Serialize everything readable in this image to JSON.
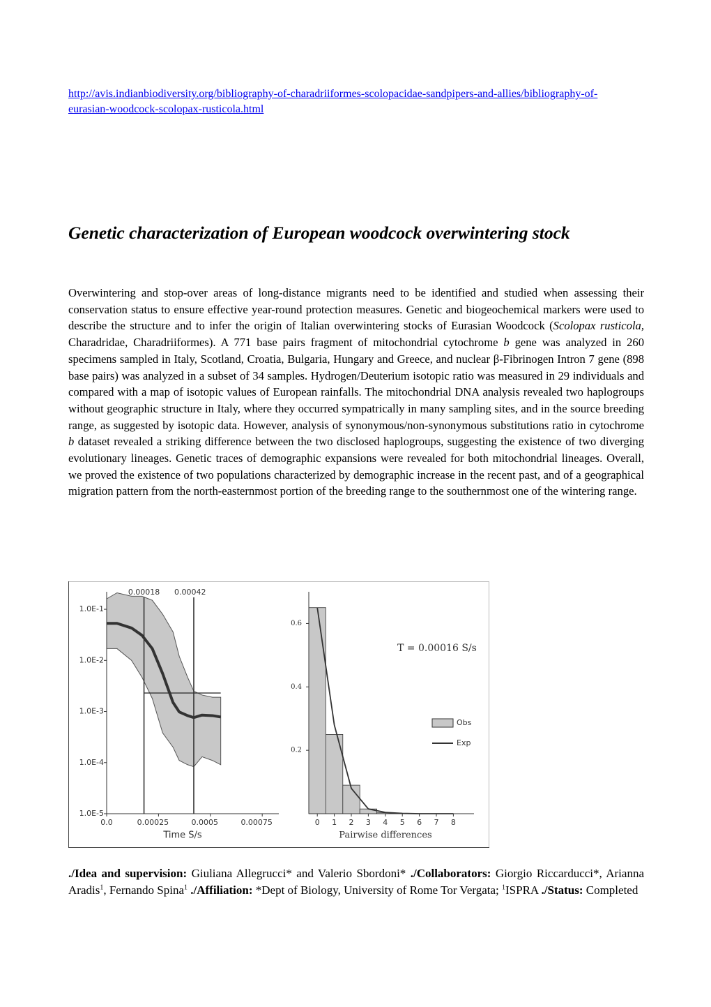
{
  "link": "http://avis.indianbiodiversity.org/bibliography-of-charadriiformes-scolopacidae-sandpipers-and-allies/bibliography-of-eurasian-woodcock-scolopax-rusticola.html",
  "title": "Genetic characterization of European woodcock overwintering stock",
  "abstract": {
    "runs": [
      {
        "text": "Overwintering and stop-over areas of long-distance migrants need to be identified and studied when assessing their conservation status to ensure effective year-round protection measures. Genetic and biogeochemical markers were used to describe the structure and to infer the origin of Italian overwintering stocks of Eurasian Woodcock ("
      },
      {
        "text": "Scolopax rusticola,",
        "italic": true
      },
      {
        "text": " Charadridae, Charadriiformes). A 771 base pairs fragment of mitochondrial cytochrome "
      },
      {
        "text": "b",
        "italic": true
      },
      {
        "text": " gene was analyzed in 260 specimens sampled in Italy, Scotland, Croatia, Bulgaria, Hungary and Greece, and nuclear β-Fibrinogen Intron 7 gene (898 base pairs) was analyzed in a subset of 34 samples. Hydrogen/Deuterium isotopic ratio was measured in 29 individuals and compared with a map of isotopic values of European rainfalls. The mitochondrial DNA analysis revealed two haplogroups without geographic structure in Italy, where they occurred sympatrically in many sampling sites, and in the source breeding range, as suggested by isotopic data. However, analysis of synonymous/non-synonymous substitutions ratio in cytochrome "
      },
      {
        "text": "b",
        "italic": true
      },
      {
        "text": " dataset revealed a striking difference between the two disclosed haplogroups, suggesting the existence of two diverging evolutionary lineages. Genetic traces of demographic expansions were revealed for both mitochondrial lineages. Overall, we proved the existence of two populations characterized by demographic increase in the recent past, and of a geographical migration pattern from the north-easternmost portion of the breeding range to the southernmost one of the wintering range."
      }
    ]
  },
  "chart_data": [
    {
      "type": "skyline",
      "xlabel": "Time S/s",
      "xlim": [
        0,
        0.00083
      ],
      "xticks": [
        {
          "value": 0,
          "label": "0.0"
        },
        0.00025,
        0.0005,
        0.00075
      ],
      "ylim": [
        1e-05,
        0.22
      ],
      "log_y": true,
      "yticks": [
        {
          "value": 0.1,
          "label": "1.0E-1"
        },
        {
          "value": 0.01,
          "label": "1.0E-2"
        },
        {
          "value": 0.001,
          "label": "1.0E-3"
        },
        {
          "value": 0.0001,
          "label": "1.0E-4"
        },
        {
          "value": 1e-05,
          "label": "1.0E-5"
        }
      ],
      "x": [
        0,
        5e-05,
        0.00012,
        0.00017,
        0.00022,
        0.00027,
        0.00032,
        0.00035,
        0.00039,
        0.00042,
        0.00046,
        0.00051,
        0.00055
      ],
      "median": [
        0.053,
        0.053,
        0.043,
        0.031,
        0.017,
        0.0055,
        0.0015,
        0.00098,
        0.00083,
        0.00076,
        0.00085,
        0.00083,
        0.00078
      ],
      "upper": [
        0.16,
        0.21,
        0.18,
        0.18,
        0.15,
        0.08,
        0.036,
        0.012,
        0.0047,
        0.0025,
        0.0021,
        0.0019,
        0.0019
      ],
      "lower": [
        0.017,
        0.017,
        0.01,
        0.0047,
        0.0018,
        0.00038,
        0.0002,
        0.00011,
        9.1e-05,
        8.3e-05,
        0.00013,
        0.00011,
        9.1e-05
      ],
      "band_color": "#c8c8c8",
      "line_color": "#333333",
      "vlines": [
        0.00018,
        0.00042
      ],
      "hline": {
        "y": 0.0023,
        "x": [
          0.00018,
          0.00055
        ]
      }
    },
    {
      "type": "bar",
      "xlabel": "Pairwise differences",
      "annotation": "T = 0.00016 S/s",
      "categories": [
        "0",
        "1",
        "2",
        "3",
        "4",
        "5",
        "6",
        "7",
        "8"
      ],
      "ylim": [
        0,
        0.7
      ],
      "yticks": [
        0.2,
        0.4,
        0.6
      ],
      "legend": "right",
      "series": [
        {
          "name": "Obs",
          "type": "bar",
          "color": "#c8c8c8",
          "values": [
            0.65,
            0.25,
            0.09,
            0.015,
            0.003,
            0.001,
            0,
            0,
            0
          ]
        },
        {
          "name": "Exp",
          "type": "line",
          "color": "#333333",
          "values": [
            0.65,
            0.28,
            0.08,
            0.015,
            0.004,
            0.001,
            0,
            0,
            0
          ]
        }
      ]
    }
  ],
  "credits": {
    "runs": [
      {
        "text": "./Idea and supervision:",
        "bold": true
      },
      {
        "text": " Giuliana Allegrucci* and Valerio Sbordoni* "
      },
      {
        "text": "./Collaborators:",
        "bold": true
      },
      {
        "text": " Giorgio Riccarducci*, Arianna Aradis"
      },
      {
        "text": "1",
        "sup": true
      },
      {
        "text": ", Fernando Spina"
      },
      {
        "text": "1",
        "sup": true
      },
      {
        "text": " ./Affiliation:",
        "bold": true
      },
      {
        "text": " *Dept of Biology, University of Rome Tor Vergata; "
      },
      {
        "text": "1",
        "sup": true
      },
      {
        "text": "ISPRA "
      },
      {
        "text": "./Status:",
        "bold": true
      },
      {
        "text": " Completed"
      }
    ]
  }
}
